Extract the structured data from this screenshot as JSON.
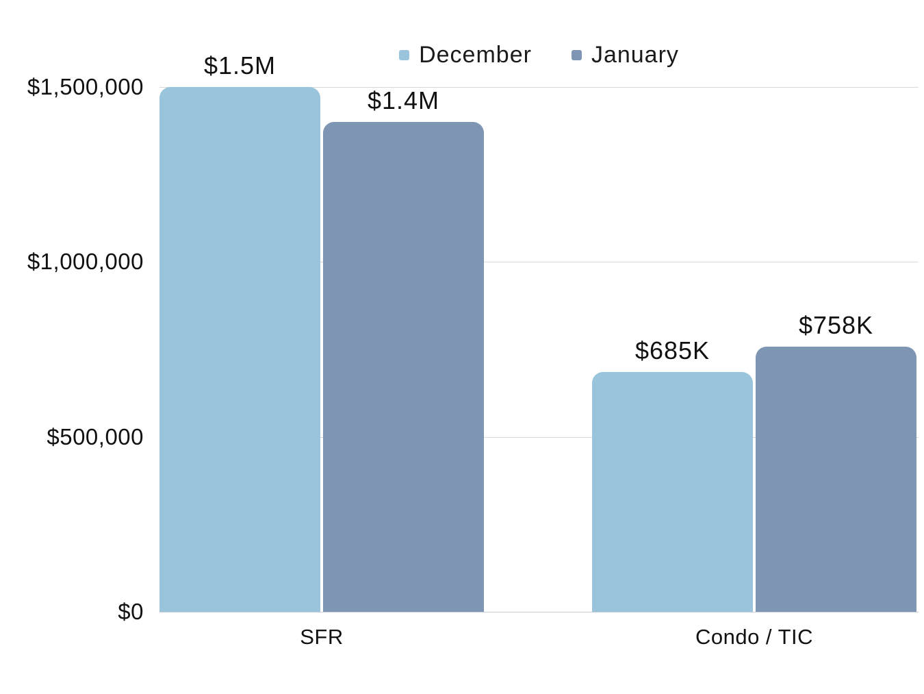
{
  "chart_data": {
    "type": "bar",
    "title": "",
    "xlabel": "",
    "ylabel": "",
    "categories": [
      "SFR",
      "Condo / TIC"
    ],
    "series": [
      {
        "name": "December",
        "color": "#9ac4dc",
        "values": [
          1500000,
          685000
        ],
        "value_labels": [
          "$1.5M",
          "$685K"
        ]
      },
      {
        "name": "January",
        "color": "#7e96b4",
        "values": [
          1400000,
          758000
        ],
        "value_labels": [
          "$1.4M",
          "$758K"
        ]
      }
    ],
    "yticks": [
      {
        "value": 0,
        "label": "$0"
      },
      {
        "value": 500000,
        "label": "$500,000"
      },
      {
        "value": 1000000,
        "label": "$1,000,000"
      },
      {
        "value": 1500000,
        "label": "$1,500,000"
      }
    ],
    "ylim": [
      0,
      1500000
    ],
    "grid": "horizontal",
    "legend_position": "top-center"
  },
  "colors": {
    "background": "#ffffff",
    "gridline": "#d9d9d9",
    "baseline": "#c7cbcf",
    "text": "#111111"
  }
}
